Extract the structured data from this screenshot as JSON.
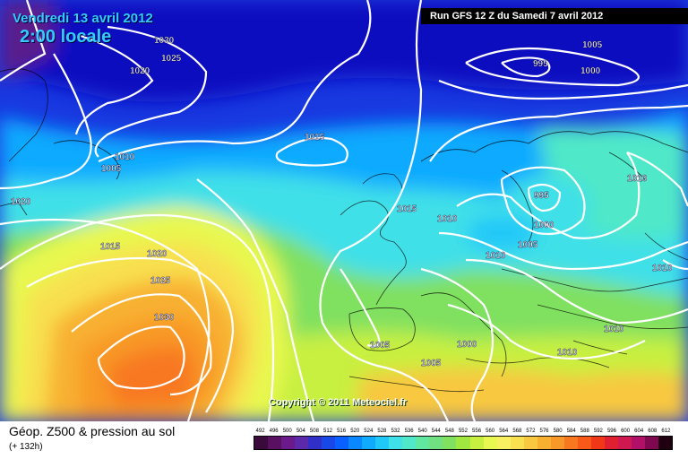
{
  "header": {
    "date_line": "Vendredi 13 avril 2012",
    "time_line": "2:00 locale",
    "run_info": "Run GFS 12 Z du Samedi 7 avril 2012"
  },
  "map": {
    "copyright": "Copyright © 2011 Meteociel.fr",
    "isobar_labels": [
      "1030",
      "1025",
      "1020",
      "1010",
      "1005",
      "1015",
      "995",
      "1005",
      "1000",
      "1020",
      "995",
      "1000",
      "1015",
      "1010",
      "1010",
      "1005",
      "1010",
      "1015",
      "1020",
      "1025",
      "1030",
      "1010",
      "1005",
      "1000",
      "1005",
      "1010",
      "1010"
    ]
  },
  "footer": {
    "title": "Géop. Z500 & pression au sol",
    "subtitle": "(+ 132h)"
  },
  "legend": {
    "ticks": [
      "492",
      "496",
      "500",
      "504",
      "508",
      "512",
      "516",
      "520",
      "524",
      "528",
      "532",
      "536",
      "540",
      "544",
      "548",
      "552",
      "556",
      "560",
      "564",
      "568",
      "572",
      "576",
      "580",
      "584",
      "588",
      "592",
      "596",
      "600",
      "604",
      "608",
      "612"
    ],
    "colors": [
      "#3a0a3a",
      "#5a1060",
      "#6a1a8a",
      "#5a2aaa",
      "#3030c8",
      "#1848e8",
      "#0a60ff",
      "#0a88ff",
      "#10aaff",
      "#20c8f8",
      "#40e0e8",
      "#50e8c8",
      "#60e8a0",
      "#70e080",
      "#80e060",
      "#a0e840",
      "#c8f040",
      "#e8f850",
      "#f8f060",
      "#f8e050",
      "#f8c840",
      "#f8b030",
      "#f89828",
      "#f87820",
      "#f85818",
      "#f03818",
      "#e02030",
      "#d01850",
      "#b01068",
      "#800850",
      "#200010"
    ]
  }
}
